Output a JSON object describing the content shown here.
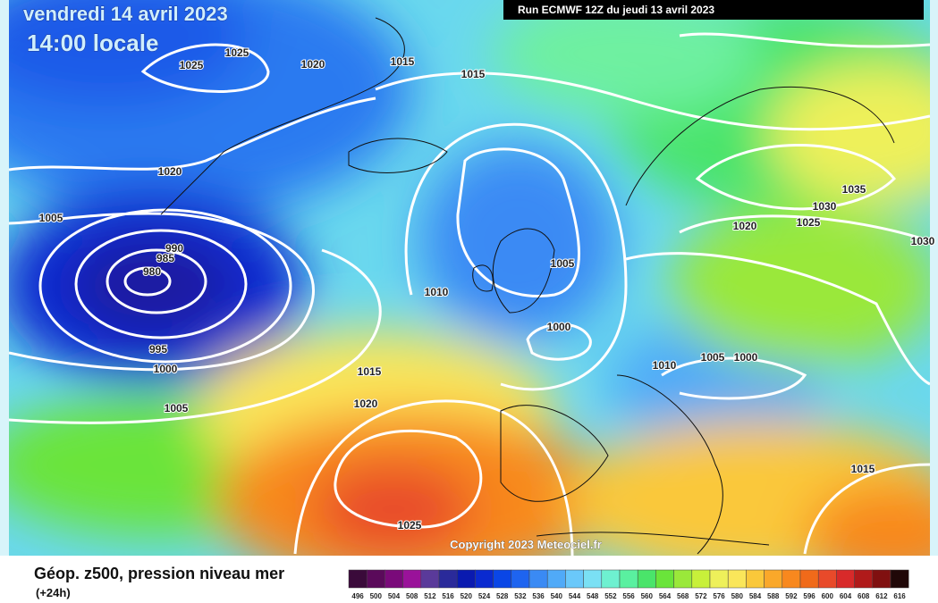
{
  "header": {
    "date": "vendredi 14 avril 2023",
    "time": "14:00 locale",
    "run": "Run ECMWF 12Z du jeudi 13 avril 2023"
  },
  "isobars": [
    "1025",
    "1025",
    "1020",
    "1015",
    "1015",
    "1020",
    "1005",
    "990",
    "985",
    "980",
    "995",
    "1000",
    "1005",
    "1010",
    "1005",
    "1000",
    "1015",
    "1020",
    "1010",
    "1005",
    "1000",
    "1025",
    "1015",
    "1035",
    "1030",
    "1025",
    "1020",
    "1030"
  ],
  "copyright": "Copyright 2023 Meteociel.fr",
  "footer": {
    "title": "Géop. z500, pression niveau mer",
    "step": "(+24h)"
  },
  "scale": {
    "labels": [
      "496",
      "500",
      "504",
      "508",
      "512",
      "516",
      "520",
      "524",
      "528",
      "532",
      "536",
      "540",
      "544",
      "548",
      "552",
      "556",
      "560",
      "564",
      "568",
      "572",
      "576",
      "580",
      "584",
      "588",
      "592",
      "596",
      "600",
      "604",
      "608",
      "612",
      "616"
    ],
    "colors": [
      "#3a0a3a",
      "#5a0a5a",
      "#7a0a7a",
      "#9a129a",
      "#5a3a9a",
      "#2a2a9a",
      "#0a1ab0",
      "#0a2ad0",
      "#0a46e6",
      "#1e64f0",
      "#3a8af4",
      "#50aaf8",
      "#6ac8fa",
      "#7ae0f4",
      "#6ef0d0",
      "#5af0a0",
      "#4ae46a",
      "#6ae43a",
      "#9ae83a",
      "#c8f03a",
      "#eef05a",
      "#fae65a",
      "#fac83a",
      "#faa82a",
      "#f8881e",
      "#f06a1a",
      "#e84a2a",
      "#d82a2a",
      "#b01a1a",
      "#801010",
      "#200808"
    ]
  }
}
